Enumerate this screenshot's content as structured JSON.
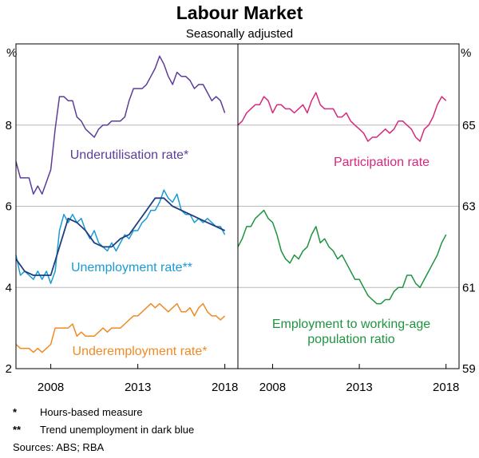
{
  "chart_data": [
    {
      "type": "line",
      "panel": "left",
      "title": "Labour Market",
      "subtitle": "Seasonally adjusted",
      "unit_label": "%",
      "ylim": [
        2,
        10
      ],
      "yticks": [
        2,
        4,
        6,
        8
      ],
      "xlim": [
        2006.0,
        2018.75
      ],
      "xticks": [
        2008,
        2013,
        2018
      ],
      "series": [
        {
          "name": "Underutilisation rate*",
          "color": "#5c3d99",
          "x": [
            2006.0,
            2006.25,
            2006.5,
            2006.75,
            2007.0,
            2007.25,
            2007.5,
            2007.75,
            2008.0,
            2008.25,
            2008.5,
            2008.75,
            2009.0,
            2009.25,
            2009.5,
            2009.75,
            2010.0,
            2010.25,
            2010.5,
            2010.75,
            2011.0,
            2011.25,
            2011.5,
            2011.75,
            2012.0,
            2012.25,
            2012.5,
            2012.75,
            2013.0,
            2013.25,
            2013.5,
            2013.75,
            2014.0,
            2014.25,
            2014.5,
            2014.75,
            2015.0,
            2015.25,
            2015.5,
            2015.75,
            2016.0,
            2016.25,
            2016.5,
            2016.75,
            2017.0,
            2017.25,
            2017.5,
            2017.75,
            2018.0
          ],
          "values": [
            7.1,
            6.7,
            6.7,
            6.7,
            6.3,
            6.5,
            6.3,
            6.6,
            6.9,
            7.9,
            8.7,
            8.7,
            8.6,
            8.6,
            8.2,
            8.1,
            7.9,
            7.8,
            7.7,
            7.9,
            8.0,
            8.0,
            8.1,
            8.1,
            8.1,
            8.2,
            8.6,
            8.9,
            8.9,
            8.9,
            9.0,
            9.2,
            9.4,
            9.7,
            9.5,
            9.2,
            9.0,
            9.3,
            9.2,
            9.2,
            9.1,
            8.9,
            9.0,
            9.0,
            8.8,
            8.6,
            8.7,
            8.6,
            8.3
          ]
        },
        {
          "name": "Unemployment rate**",
          "color": "#1b9ad6",
          "x": [
            2006.0,
            2006.25,
            2006.5,
            2006.75,
            2007.0,
            2007.25,
            2007.5,
            2007.75,
            2008.0,
            2008.25,
            2008.5,
            2008.75,
            2009.0,
            2009.25,
            2009.5,
            2009.75,
            2010.0,
            2010.25,
            2010.5,
            2010.75,
            2011.0,
            2011.25,
            2011.5,
            2011.75,
            2012.0,
            2012.25,
            2012.5,
            2012.75,
            2013.0,
            2013.25,
            2013.5,
            2013.75,
            2014.0,
            2014.25,
            2014.5,
            2014.75,
            2015.0,
            2015.25,
            2015.5,
            2015.75,
            2016.0,
            2016.25,
            2016.5,
            2016.75,
            2017.0,
            2017.25,
            2017.5,
            2017.75,
            2018.0
          ],
          "values": [
            4.8,
            4.3,
            4.4,
            4.3,
            4.2,
            4.4,
            4.2,
            4.4,
            4.1,
            4.4,
            5.4,
            5.8,
            5.6,
            5.8,
            5.6,
            5.7,
            5.4,
            5.2,
            5.4,
            5.1,
            5.0,
            4.9,
            5.1,
            4.9,
            5.1,
            5.3,
            5.2,
            5.4,
            5.4,
            5.6,
            5.7,
            5.9,
            5.9,
            6.1,
            6.4,
            6.2,
            6.1,
            6.3,
            5.9,
            5.8,
            5.8,
            5.6,
            5.7,
            5.6,
            5.7,
            5.6,
            5.5,
            5.5,
            5.3
          ]
        },
        {
          "name": "Trend unemployment",
          "color": "#1f3f80",
          "x": [
            2006.0,
            2006.5,
            2007.0,
            2007.5,
            2008.0,
            2008.5,
            2009.0,
            2009.5,
            2010.0,
            2010.5,
            2011.0,
            2011.5,
            2012.0,
            2012.5,
            2013.0,
            2013.5,
            2014.0,
            2014.5,
            2015.0,
            2015.5,
            2016.0,
            2016.5,
            2017.0,
            2017.5,
            2018.0
          ],
          "values": [
            4.7,
            4.4,
            4.3,
            4.3,
            4.3,
            5.0,
            5.7,
            5.6,
            5.4,
            5.1,
            5.0,
            5.0,
            5.2,
            5.3,
            5.6,
            5.9,
            6.2,
            6.2,
            6.0,
            5.9,
            5.8,
            5.7,
            5.6,
            5.5,
            5.4
          ]
        },
        {
          "name": "Underemployment rate*",
          "color": "#f08a24",
          "x": [
            2006.0,
            2006.25,
            2006.5,
            2006.75,
            2007.0,
            2007.25,
            2007.5,
            2007.75,
            2008.0,
            2008.25,
            2008.5,
            2008.75,
            2009.0,
            2009.25,
            2009.5,
            2009.75,
            2010.0,
            2010.25,
            2010.5,
            2010.75,
            2011.0,
            2011.25,
            2011.5,
            2011.75,
            2012.0,
            2012.25,
            2012.5,
            2012.75,
            2013.0,
            2013.25,
            2013.5,
            2013.75,
            2014.0,
            2014.25,
            2014.5,
            2014.75,
            2015.0,
            2015.25,
            2015.5,
            2015.75,
            2016.0,
            2016.25,
            2016.5,
            2016.75,
            2017.0,
            2017.25,
            2017.5,
            2017.75,
            2018.0
          ],
          "values": [
            2.6,
            2.5,
            2.5,
            2.5,
            2.4,
            2.5,
            2.4,
            2.5,
            2.6,
            3.0,
            3.0,
            3.0,
            3.0,
            3.1,
            2.8,
            2.9,
            2.8,
            2.8,
            2.8,
            2.9,
            3.0,
            2.9,
            3.0,
            3.0,
            3.0,
            3.1,
            3.2,
            3.3,
            3.3,
            3.4,
            3.5,
            3.6,
            3.5,
            3.6,
            3.5,
            3.4,
            3.5,
            3.6,
            3.4,
            3.4,
            3.5,
            3.3,
            3.5,
            3.6,
            3.4,
            3.3,
            3.3,
            3.2,
            3.3
          ]
        }
      ]
    },
    {
      "type": "line",
      "panel": "right",
      "unit_label": "%",
      "ylim": [
        59,
        67
      ],
      "yticks": [
        59,
        61,
        63,
        65
      ],
      "xlim": [
        2006.0,
        2018.75
      ],
      "xticks": [
        2008,
        2013,
        2018
      ],
      "series": [
        {
          "name": "Participation rate",
          "color": "#d6287d",
          "x": [
            2006.0,
            2006.25,
            2006.5,
            2006.75,
            2007.0,
            2007.25,
            2007.5,
            2007.75,
            2008.0,
            2008.25,
            2008.5,
            2008.75,
            2009.0,
            2009.25,
            2009.5,
            2009.75,
            2010.0,
            2010.25,
            2010.5,
            2010.75,
            2011.0,
            2011.25,
            2011.5,
            2011.75,
            2012.0,
            2012.25,
            2012.5,
            2012.75,
            2013.0,
            2013.25,
            2013.5,
            2013.75,
            2014.0,
            2014.25,
            2014.5,
            2014.75,
            2015.0,
            2015.25,
            2015.5,
            2015.75,
            2016.0,
            2016.25,
            2016.5,
            2016.75,
            2017.0,
            2017.25,
            2017.5,
            2017.75,
            2018.0
          ],
          "values": [
            65.0,
            65.1,
            65.3,
            65.4,
            65.5,
            65.5,
            65.7,
            65.6,
            65.3,
            65.5,
            65.5,
            65.4,
            65.4,
            65.3,
            65.4,
            65.5,
            65.3,
            65.6,
            65.8,
            65.5,
            65.4,
            65.4,
            65.4,
            65.2,
            65.2,
            65.3,
            65.1,
            65.0,
            64.9,
            64.8,
            64.6,
            64.7,
            64.7,
            64.8,
            64.9,
            64.8,
            64.9,
            65.1,
            65.1,
            65.0,
            64.9,
            64.7,
            64.6,
            64.9,
            65.0,
            65.2,
            65.5,
            65.7,
            65.6
          ]
        },
        {
          "name": "Employment to working-age population ratio",
          "color": "#1e9440",
          "x": [
            2006.0,
            2006.25,
            2006.5,
            2006.75,
            2007.0,
            2007.25,
            2007.5,
            2007.75,
            2008.0,
            2008.25,
            2008.5,
            2008.75,
            2009.0,
            2009.25,
            2009.5,
            2009.75,
            2010.0,
            2010.25,
            2010.5,
            2010.75,
            2011.0,
            2011.25,
            2011.5,
            2011.75,
            2012.0,
            2012.25,
            2012.5,
            2012.75,
            2013.0,
            2013.25,
            2013.5,
            2013.75,
            2014.0,
            2014.25,
            2014.5,
            2014.75,
            2015.0,
            2015.25,
            2015.5,
            2015.75,
            2016.0,
            2016.25,
            2016.5,
            2016.75,
            2017.0,
            2017.25,
            2017.5,
            2017.75,
            2018.0
          ],
          "values": [
            62.0,
            62.2,
            62.5,
            62.5,
            62.7,
            62.8,
            62.9,
            62.7,
            62.6,
            62.3,
            61.9,
            61.7,
            61.6,
            61.8,
            61.7,
            61.9,
            62.0,
            62.3,
            62.5,
            62.1,
            62.2,
            62.0,
            61.9,
            61.7,
            61.8,
            61.6,
            61.4,
            61.2,
            61.2,
            61.0,
            60.8,
            60.7,
            60.6,
            60.6,
            60.7,
            60.7,
            60.9,
            61.0,
            61.0,
            61.3,
            61.3,
            61.1,
            61.0,
            61.2,
            61.4,
            61.6,
            61.8,
            62.1,
            62.3
          ]
        }
      ]
    }
  ],
  "labels": {
    "underutilisation": "Underutilisation rate*",
    "unemployment": "Unemployment rate**",
    "underemployment": "Underemployment rate*",
    "participation": "Participation rate",
    "employment_line1": "Employment to working-age",
    "employment_line2": "population ratio"
  },
  "notes": {
    "note1_mark": "*",
    "note1_text": "Hours-based measure",
    "note2_mark": "**",
    "note2_text": "Trend unemployment in dark blue",
    "sources": "Sources: ABS; RBA"
  }
}
